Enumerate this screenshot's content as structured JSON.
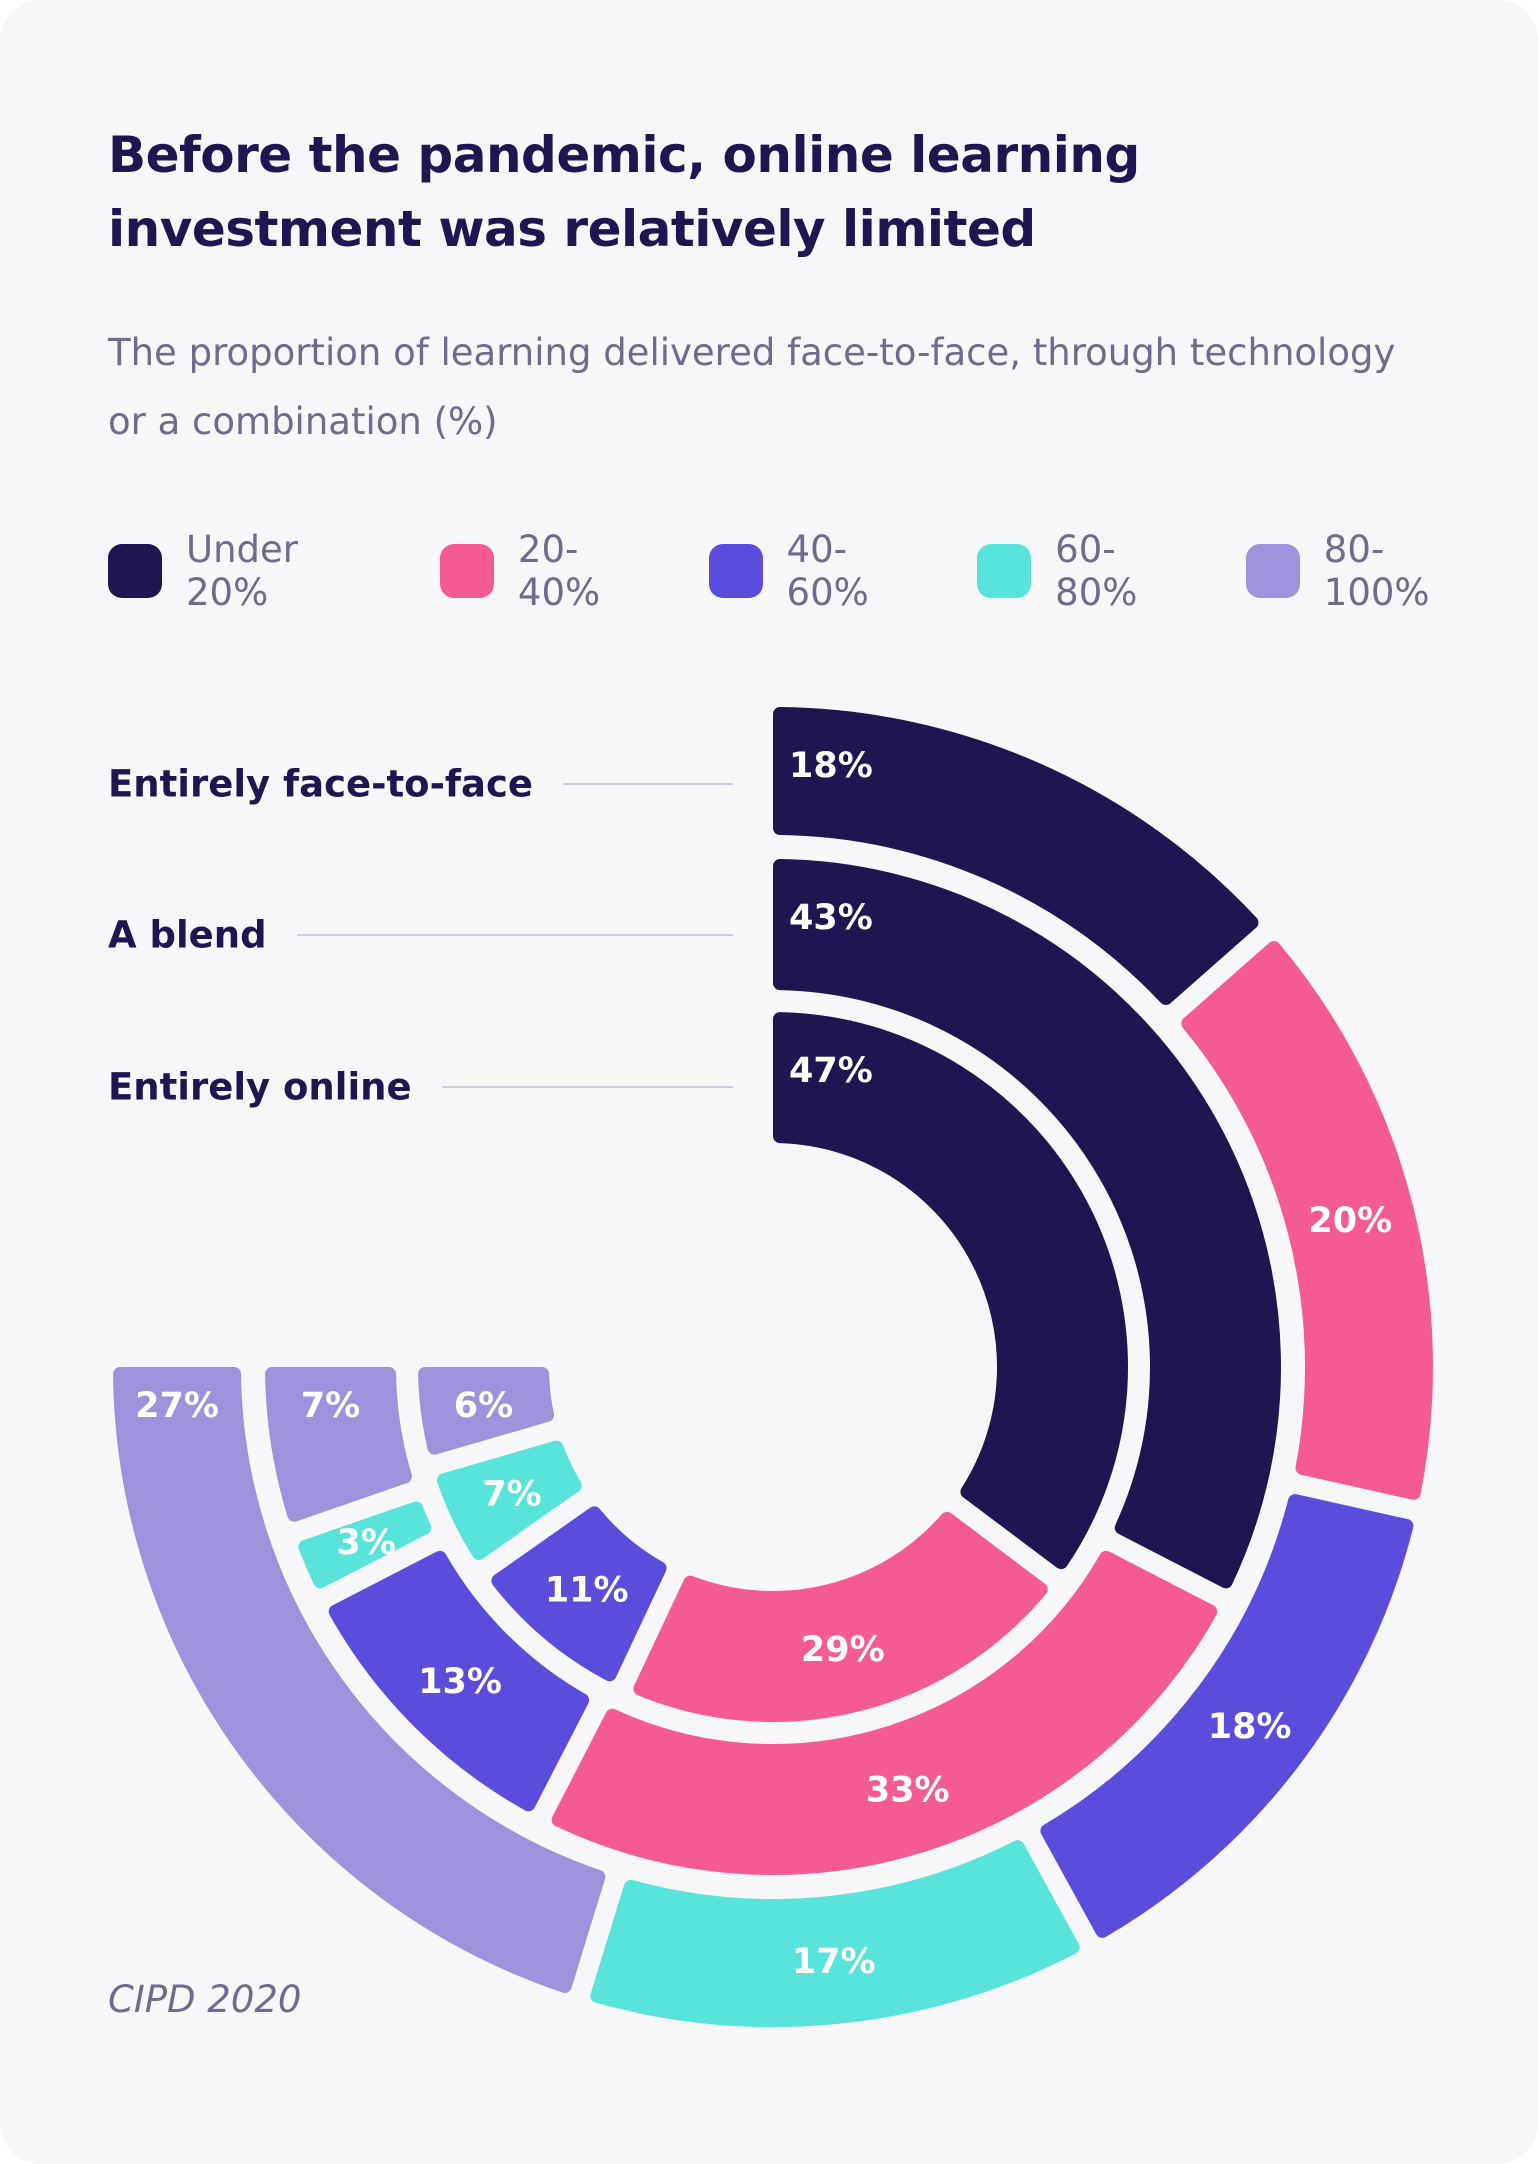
{
  "title": "Before the pandemic, online learning investment was relatively limited",
  "subtitle": "The proportion of learning delivered face-to-face, through technology or a combination (%)",
  "source": "CIPD 2020",
  "colors": {
    "background": "#f7f7f9",
    "title": "#1e1650",
    "muted": "#6f6a8e",
    "series": [
      "#1e1650",
      "#f55b93",
      "#5b4cdb",
      "#58e3db",
      "#9d93dc"
    ]
  },
  "chart_data": {
    "type": "radial-bar-stacked",
    "title": "Before the pandemic, online learning investment was relatively limited",
    "subtitle": "The proportion of learning delivered face-to-face, through technology or a combination (%)",
    "legend": [
      "Under 20%",
      "20-40%",
      "40-60%",
      "60-80%",
      "80-100%"
    ],
    "legend_position": "top",
    "sweep_degrees": 270,
    "rings": [
      {
        "name": "Entirely face-to-face",
        "values": [
          18,
          20,
          18,
          17,
          27
        ],
        "labels": [
          "18%",
          "20%",
          "18%",
          "17%",
          "27%"
        ]
      },
      {
        "name": "A blend",
        "values": [
          43,
          33,
          13,
          3,
          7
        ],
        "labels": [
          "43%",
          "33%",
          "13%",
          "3%",
          "7%"
        ]
      },
      {
        "name": "Entirely online",
        "values": [
          47,
          29,
          11,
          7,
          6
        ],
        "labels": [
          "47%",
          "29%",
          "11%",
          "7%",
          "6%"
        ]
      }
    ],
    "unit": "%"
  }
}
